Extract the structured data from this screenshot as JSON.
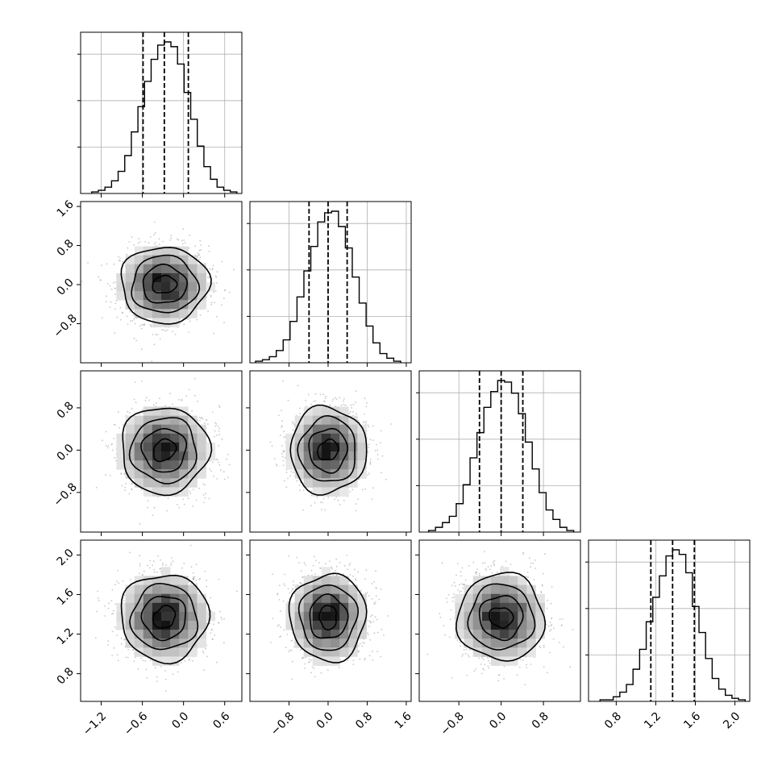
{
  "chart_data": {
    "type": "corner",
    "grid": true,
    "parameters": [
      {
        "range": [
          -1.5,
          0.85
        ],
        "ticks": [
          -1.2,
          -0.6,
          0.0,
          0.6
        ],
        "tick_labels": [
          "−1.2",
          "−0.6",
          "0.0",
          "0.6"
        ],
        "quantiles": [
          -0.59,
          -0.28,
          0.07
        ],
        "mean": -0.28,
        "sd": 0.32
      },
      {
        "range": [
          -1.6,
          1.7
        ],
        "ticks": [
          -0.8,
          0.0,
          0.8,
          1.6
        ],
        "tick_labels": [
          "−0.8",
          "0.0",
          "0.8",
          "1.6"
        ],
        "quantiles": [
          -0.39,
          0.0,
          0.39
        ],
        "mean": 0.0,
        "sd": 0.39
      },
      {
        "range": [
          -1.55,
          1.5
        ],
        "ticks": [
          -0.8,
          0.0,
          0.8
        ],
        "tick_labels": [
          "−0.8",
          "0.0",
          "0.8"
        ],
        "quantiles": [
          -0.41,
          0.0,
          0.41
        ],
        "mean": 0.0,
        "sd": 0.41
      },
      {
        "range": [
          0.52,
          2.15
        ],
        "ticks": [
          0.8,
          1.2,
          1.6,
          2.0
        ],
        "tick_labels": [
          "0.8",
          "1.2",
          "1.6",
          "2.0"
        ],
        "quantiles": [
          1.15,
          1.37,
          1.59
        ],
        "mean": 1.37,
        "sd": 0.22
      }
    ],
    "histograms": [
      {
        "param": 0,
        "counts": [
          1,
          2,
          4,
          8,
          14,
          24,
          39,
          55,
          71,
          85,
          94,
          96,
          93,
          82,
          64,
          47,
          30,
          17,
          9,
          4,
          2,
          1
        ],
        "bins": 22
      },
      {
        "param": 1,
        "counts": [
          1,
          2,
          4,
          8,
          15,
          27,
          43,
          60,
          76,
          92,
          98,
          99,
          89,
          75,
          56,
          39,
          24,
          13,
          6,
          3,
          1
        ],
        "bins": 21
      },
      {
        "param": 2,
        "counts": [
          1,
          3,
          6,
          10,
          18,
          30,
          47,
          63,
          79,
          89,
          96,
          95,
          88,
          75,
          57,
          40,
          25,
          14,
          8,
          3,
          1
        ],
        "bins": 21
      },
      {
        "param": 3,
        "counts": [
          1,
          1,
          3,
          6,
          11,
          21,
          34,
          52,
          68,
          82,
          95,
          99,
          96,
          84,
          62,
          45,
          28,
          15,
          8,
          4,
          2,
          1
        ],
        "bins": 22
      }
    ],
    "scatter_panels": [
      {
        "x": 0,
        "y": 1
      },
      {
        "x": 0,
        "y": 2
      },
      {
        "x": 1,
        "y": 2
      },
      {
        "x": 0,
        "y": 3
      },
      {
        "x": 1,
        "y": 3
      },
      {
        "x": 2,
        "y": 3
      }
    ],
    "contour_levels_sigma": [
      0.5,
      1.0,
      1.5,
      2.0
    ]
  }
}
